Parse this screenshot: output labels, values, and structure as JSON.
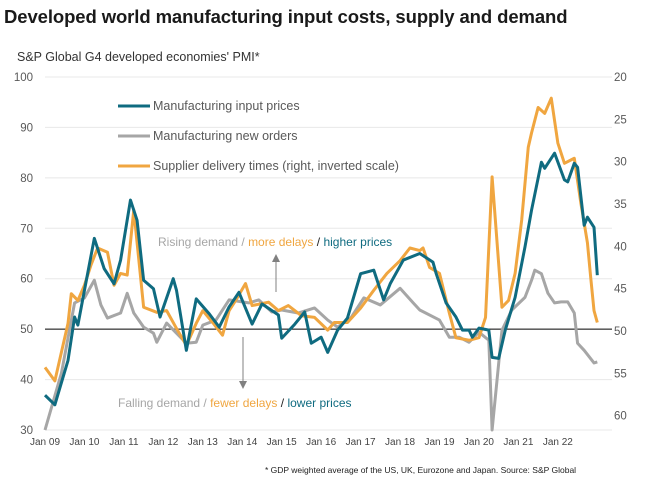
{
  "title": "Developed world manufacturing input costs, supply and demand",
  "subtitle": "S&P Global G4 developed economies' PMI*",
  "footnote": "* GDP weighted average of the US, UK, Eurozone and Japan.   Source: S&P Global",
  "chart_data": {
    "type": "line",
    "title": "Developed world manufacturing input costs, supply and demand",
    "ylabel": "S&P Global G4 developed economies' PMI*",
    "ylim": [
      30,
      100
    ],
    "y2lim": [
      20,
      61.7
    ],
    "y2_inverted": true,
    "grid": true,
    "reference_line": 50,
    "legend_position": "top-left",
    "y_ticks": [
      "100",
      "90",
      "80",
      "70",
      "60",
      "50",
      "40",
      "30"
    ],
    "y2_ticks": [
      "20",
      "25",
      "30",
      "35",
      "40",
      "45",
      "50",
      "55",
      "60"
    ],
    "x_ticks": [
      "Jan 09",
      "Jan 10",
      "Jan 11",
      "Jan 12",
      "Jan 13",
      "Jan 14",
      "Jan 15",
      "Jan 16",
      "Jan 17",
      "Jan 18",
      "Jan 19",
      "Jan 20",
      "Jan 21",
      "Jan 22"
    ],
    "annotations": {
      "rising": {
        "a": "Rising demand /",
        "b": "more delays",
        "c": "/",
        "d": "higher prices"
      },
      "falling": {
        "a": "Falling demand /",
        "b": "fewer delays",
        "c": "/",
        "d": "lower prices"
      }
    },
    "series": [
      {
        "name": "Manufacturing input prices",
        "axis": "left",
        "color": "#0f6b80",
        "points": [
          [
            "2009-01",
            36.9
          ],
          [
            "2009-04",
            35
          ],
          [
            "2009-08",
            43.8
          ],
          [
            "2009-10",
            52.4
          ],
          [
            "2009-11",
            50.8
          ],
          [
            "2010-01",
            57.7
          ],
          [
            "2010-04",
            68
          ],
          [
            "2010-07",
            62
          ],
          [
            "2010-10",
            59
          ],
          [
            "2010-12",
            63.7
          ],
          [
            "2011-03",
            75.6
          ],
          [
            "2011-05",
            71.6
          ],
          [
            "2011-07",
            59.7
          ],
          [
            "2011-10",
            58
          ],
          [
            "2011-12",
            52.4
          ],
          [
            "2012-04",
            60
          ],
          [
            "2012-05",
            57.7
          ],
          [
            "2012-08",
            45.8
          ],
          [
            "2012-11",
            56
          ],
          [
            "2013-03",
            53
          ],
          [
            "2013-06",
            50.4
          ],
          [
            "2013-09",
            54.4
          ],
          [
            "2013-12",
            57.3
          ],
          [
            "2014-04",
            51
          ],
          [
            "2014-07",
            55
          ],
          [
            "2014-12",
            52.8
          ],
          [
            "2015-01",
            48.2
          ],
          [
            "2015-05",
            51
          ],
          [
            "2015-08",
            53.4
          ],
          [
            "2015-10",
            47.2
          ],
          [
            "2016-01",
            48.4
          ],
          [
            "2016-03",
            45.4
          ],
          [
            "2016-06",
            49.8
          ],
          [
            "2016-09",
            52.2
          ],
          [
            "2017-01",
            61
          ],
          [
            "2017-05",
            61.7
          ],
          [
            "2017-08",
            55.8
          ],
          [
            "2017-10",
            59
          ],
          [
            "2018-02",
            63.7
          ],
          [
            "2018-07",
            65
          ],
          [
            "2018-11",
            63.3
          ],
          [
            "2018-12",
            61
          ],
          [
            "2019-03",
            55.2
          ],
          [
            "2019-06",
            52.4
          ],
          [
            "2019-08",
            49.8
          ],
          [
            "2019-10",
            49.8
          ],
          [
            "2019-11",
            48.4
          ],
          [
            "2020-01",
            50.2
          ],
          [
            "2020-04",
            49.8
          ],
          [
            "2020-05",
            44.4
          ],
          [
            "2020-07",
            44.2
          ],
          [
            "2020-09",
            49.8
          ],
          [
            "2020-12",
            56.3
          ],
          [
            "2021-03",
            66.3
          ],
          [
            "2021-05",
            73.6
          ],
          [
            "2021-08",
            83.1
          ],
          [
            "2021-09",
            81.9
          ],
          [
            "2021-12",
            84.9
          ],
          [
            "2022-03",
            79.6
          ],
          [
            "2022-04",
            79.2
          ],
          [
            "2022-06",
            82.9
          ],
          [
            "2022-07",
            82.1
          ],
          [
            "2022-09",
            70.6
          ],
          [
            "2022-10",
            72.2
          ],
          [
            "2022-12",
            70.2
          ],
          [
            "2023-01",
            60.7
          ]
        ]
      },
      {
        "name": "Manufacturing new orders",
        "axis": "left",
        "color": "#a6a6a6",
        "points": [
          [
            "2009-01",
            30
          ],
          [
            "2009-06",
            41.3
          ],
          [
            "2009-10",
            55.2
          ],
          [
            "2010-01",
            56.2
          ],
          [
            "2010-04",
            59.7
          ],
          [
            "2010-06",
            54.8
          ],
          [
            "2010-08",
            52.2
          ],
          [
            "2010-12",
            53.2
          ],
          [
            "2011-02",
            57.1
          ],
          [
            "2011-04",
            53.2
          ],
          [
            "2011-07",
            50.4
          ],
          [
            "2011-10",
            49.2
          ],
          [
            "2011-11",
            47.4
          ],
          [
            "2012-02",
            51.2
          ],
          [
            "2012-05",
            49.2
          ],
          [
            "2012-08",
            47.2
          ],
          [
            "2012-11",
            47.4
          ],
          [
            "2013-01",
            50.8
          ],
          [
            "2013-05",
            51.8
          ],
          [
            "2013-08",
            54.8
          ],
          [
            "2013-09",
            55.8
          ],
          [
            "2014-03",
            55.2
          ],
          [
            "2014-06",
            55.8
          ],
          [
            "2014-10",
            53.4
          ],
          [
            "2015-01",
            53.8
          ],
          [
            "2015-06",
            53.2
          ],
          [
            "2015-11",
            54.2
          ],
          [
            "2016-03",
            51.8
          ],
          [
            "2016-06",
            50.4
          ],
          [
            "2016-10",
            52.2
          ],
          [
            "2017-02",
            56.2
          ],
          [
            "2017-07",
            54.8
          ],
          [
            "2018-01",
            58.1
          ],
          [
            "2018-05",
            55.2
          ],
          [
            "2018-07",
            53.8
          ],
          [
            "2019-01",
            51.8
          ],
          [
            "2019-04",
            48.4
          ],
          [
            "2019-07",
            48.4
          ],
          [
            "2019-10",
            47.4
          ],
          [
            "2020-01",
            49.4
          ],
          [
            "2020-04",
            47.8
          ],
          [
            "2020-05",
            30
          ],
          [
            "2020-08",
            49.8
          ],
          [
            "2020-11",
            53.8
          ],
          [
            "2021-03",
            56.3
          ],
          [
            "2021-05",
            59.7
          ],
          [
            "2021-06",
            61.7
          ],
          [
            "2021-08",
            61
          ],
          [
            "2021-10",
            57.1
          ],
          [
            "2021-12",
            55.2
          ],
          [
            "2022-02",
            55.4
          ],
          [
            "2022-04",
            55.4
          ],
          [
            "2022-06",
            53.2
          ],
          [
            "2022-07",
            47.2
          ],
          [
            "2022-09",
            45.8
          ],
          [
            "2022-12",
            43.3
          ],
          [
            "2023-01",
            43.5
          ]
        ]
      },
      {
        "name": "Supplier delivery times (right, inverted scale)",
        "axis": "right",
        "color": "#f0a640",
        "points": [
          [
            "2009-01",
            54.3
          ],
          [
            "2009-04",
            55.9
          ],
          [
            "2009-08",
            49.1
          ],
          [
            "2009-09",
            45.6
          ],
          [
            "2009-11",
            46.4
          ],
          [
            "2010-01",
            44.6
          ],
          [
            "2010-03",
            42.2
          ],
          [
            "2010-05",
            40.2
          ],
          [
            "2010-08",
            40.7
          ],
          [
            "2010-10",
            44.6
          ],
          [
            "2010-12",
            43.2
          ],
          [
            "2011-02",
            43.4
          ],
          [
            "2011-04",
            35.7
          ],
          [
            "2011-07",
            47.2
          ],
          [
            "2011-11",
            47.8
          ],
          [
            "2012-02",
            47.6
          ],
          [
            "2012-05",
            49.7
          ],
          [
            "2012-08",
            51.7
          ],
          [
            "2012-11",
            49.1
          ],
          [
            "2013-01",
            47.6
          ],
          [
            "2013-04",
            49
          ],
          [
            "2013-07",
            50.5
          ],
          [
            "2013-09",
            47.6
          ],
          [
            "2013-11",
            46.4
          ],
          [
            "2014-02",
            44.4
          ],
          [
            "2014-04",
            47
          ],
          [
            "2014-09",
            46.6
          ],
          [
            "2014-12",
            47.6
          ],
          [
            "2015-03",
            47
          ],
          [
            "2015-07",
            48.2
          ],
          [
            "2015-11",
            48.4
          ],
          [
            "2016-03",
            49.9
          ],
          [
            "2016-05",
            49
          ],
          [
            "2016-09",
            49
          ],
          [
            "2017-01",
            47.3
          ],
          [
            "2017-05",
            45.2
          ],
          [
            "2017-09",
            43.2
          ],
          [
            "2018-01",
            41.7
          ],
          [
            "2018-04",
            40.2
          ],
          [
            "2018-07",
            40.5
          ],
          [
            "2018-08",
            40.2
          ],
          [
            "2018-10",
            42.5
          ],
          [
            "2019-01",
            43.2
          ],
          [
            "2019-04",
            47.9
          ],
          [
            "2019-06",
            50.8
          ],
          [
            "2019-10",
            51.1
          ],
          [
            "2020-01",
            50.8
          ],
          [
            "2020-03",
            48.4
          ],
          [
            "2020-05",
            31.8
          ],
          [
            "2020-08",
            47.2
          ],
          [
            "2020-10",
            46.4
          ],
          [
            "2020-12",
            43.2
          ],
          [
            "2021-02",
            36.9
          ],
          [
            "2021-04",
            28.3
          ],
          [
            "2021-05",
            26.6
          ],
          [
            "2021-07",
            23.6
          ],
          [
            "2021-09",
            24.3
          ],
          [
            "2021-11",
            22.5
          ],
          [
            "2022-01",
            27.8
          ],
          [
            "2022-03",
            30.2
          ],
          [
            "2022-06",
            29.6
          ],
          [
            "2022-08",
            34.9
          ],
          [
            "2022-10",
            39.6
          ],
          [
            "2022-11",
            43.7
          ],
          [
            "2022-12",
            47.6
          ],
          [
            "2023-01",
            49
          ]
        ]
      }
    ]
  }
}
